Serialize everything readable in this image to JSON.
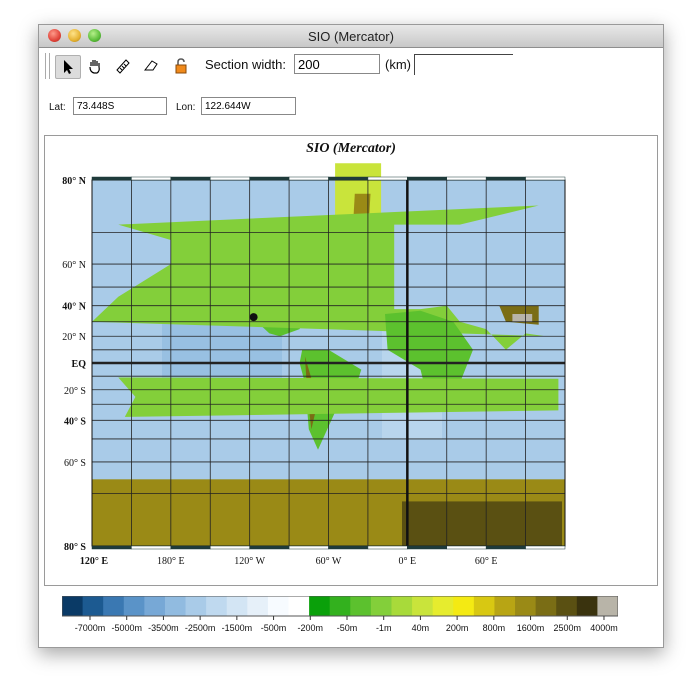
{
  "window": {
    "title": "SIO (Mercator)"
  },
  "toolbar": {
    "tools": [
      "arrow-select-icon",
      "hand-pan-icon",
      "ruler-icon",
      "eraser-icon",
      "lock-icon"
    ],
    "section_width_label": "Section width:",
    "section_width_value": "200",
    "unit_label": "(km)",
    "extra_value": ""
  },
  "coords": {
    "lat_label": "Lat:",
    "lat_value": "73.448S",
    "lon_label": "Lon:",
    "lon_value": "122.644W"
  },
  "map": {
    "title": "SIO (Mercator)",
    "lat_labels": [
      "80° N",
      "60° N",
      "40° N",
      "20° N",
      "EQ",
      "20° S",
      "40° S",
      "60° S",
      "80° S"
    ],
    "lon_labels": [
      "120° E",
      "180° E",
      "120° W",
      "60° W",
      "0° E",
      "60° E"
    ],
    "marker": {
      "lat": 33,
      "lon": -117
    }
  },
  "legend": {
    "labels": [
      "-7000m",
      "-5000m",
      "-3500m",
      "-2500m",
      "-1500m",
      "-500m",
      "-200m",
      "-50m",
      "-1m",
      "40m",
      "200m",
      "800m",
      "1600m",
      "2500m",
      "4000m"
    ],
    "colors": [
      "#0a3a66",
      "#1c5a91",
      "#3a78b2",
      "#5a93c8",
      "#77a8d6",
      "#91bbe0",
      "#a9cbe8",
      "#bfd9ef",
      "#d3e5f4",
      "#e6f0f9",
      "#f7fbff",
      "#ffffff",
      "#0aa00a",
      "#33b11e",
      "#5cc12e",
      "#83cf3a",
      "#a8da3a",
      "#c9e43b",
      "#e6ec2e",
      "#f4ea13",
      "#d8c812",
      "#b8a514",
      "#9a8a16",
      "#7a6d15",
      "#5a5012",
      "#3a330e",
      "#b8b4a8"
    ]
  },
  "accent_color": "#3a78b2"
}
